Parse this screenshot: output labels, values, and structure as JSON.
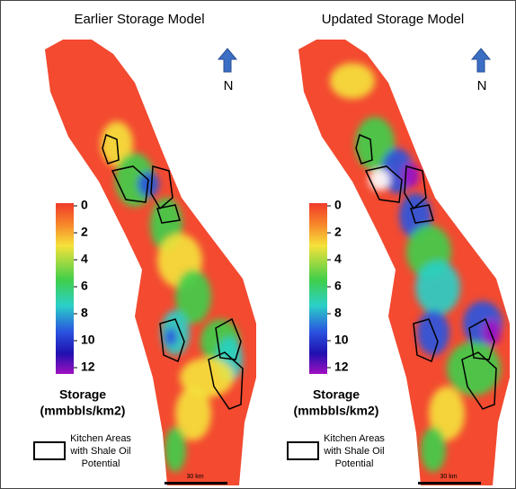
{
  "panels": [
    {
      "title": "Earlier Storage Model",
      "north": "N",
      "colorbar_ticks": [
        0,
        2,
        4,
        6,
        8,
        10,
        12
      ],
      "legend_title": [
        "Storage",
        "(mmbbls/km2)"
      ],
      "legend_text": [
        "Kitchen Areas",
        "with Shale Oil",
        "Potential"
      ],
      "scale": "30 km"
    },
    {
      "title": "Updated Storage Model",
      "north": "N",
      "colorbar_ticks": [
        0,
        2,
        4,
        6,
        8,
        10,
        12
      ],
      "legend_title": [
        "Storage",
        "(mmbbls/km2)"
      ],
      "legend_text": [
        "Kitchen Areas",
        "with Shale Oil",
        "Potential"
      ],
      "scale": "30 km"
    }
  ]
}
